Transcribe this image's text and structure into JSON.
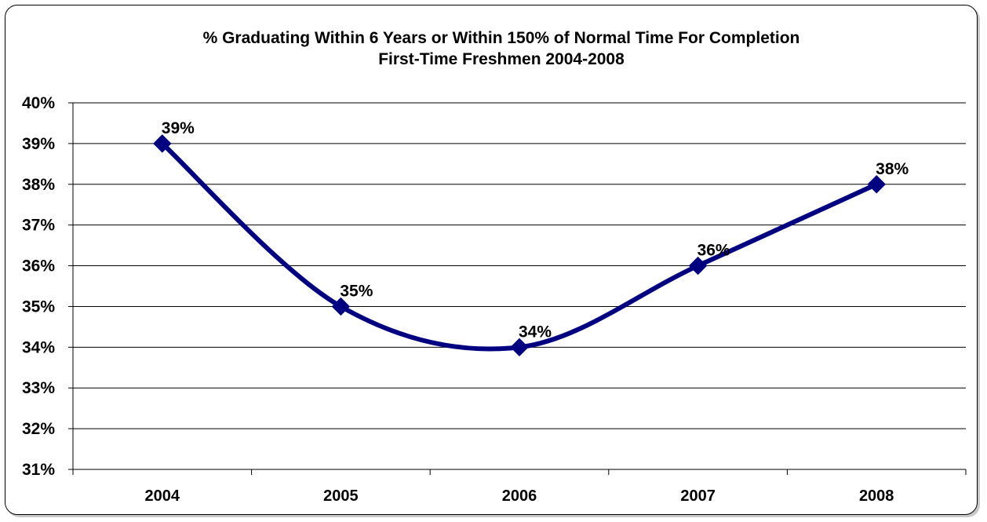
{
  "chart_data": {
    "type": "line",
    "title": "% Graduating Within 6 Years or Within 150% of Normal Time For Completion",
    "subtitle": "First-Time Freshmen 2004-2008",
    "categories": [
      "2004",
      "2005",
      "2006",
      "2007",
      "2008"
    ],
    "series": [
      {
        "values": [
          39,
          35,
          34,
          36,
          38
        ],
        "data_labels": [
          "39%",
          "35%",
          "34%",
          "36%",
          "38%"
        ],
        "color": "#000080",
        "marker": "diamond",
        "smooth": true
      }
    ],
    "ylim": [
      31,
      40
    ],
    "yticks": [
      31,
      32,
      33,
      34,
      35,
      36,
      37,
      38,
      39,
      40
    ],
    "ytick_labels": [
      "31%",
      "32%",
      "33%",
      "34%",
      "35%",
      "36%",
      "37%",
      "38%",
      "39%",
      "40%"
    ],
    "xlabel": "",
    "ylabel": "",
    "grid": "horizontal",
    "legend": "none"
  }
}
